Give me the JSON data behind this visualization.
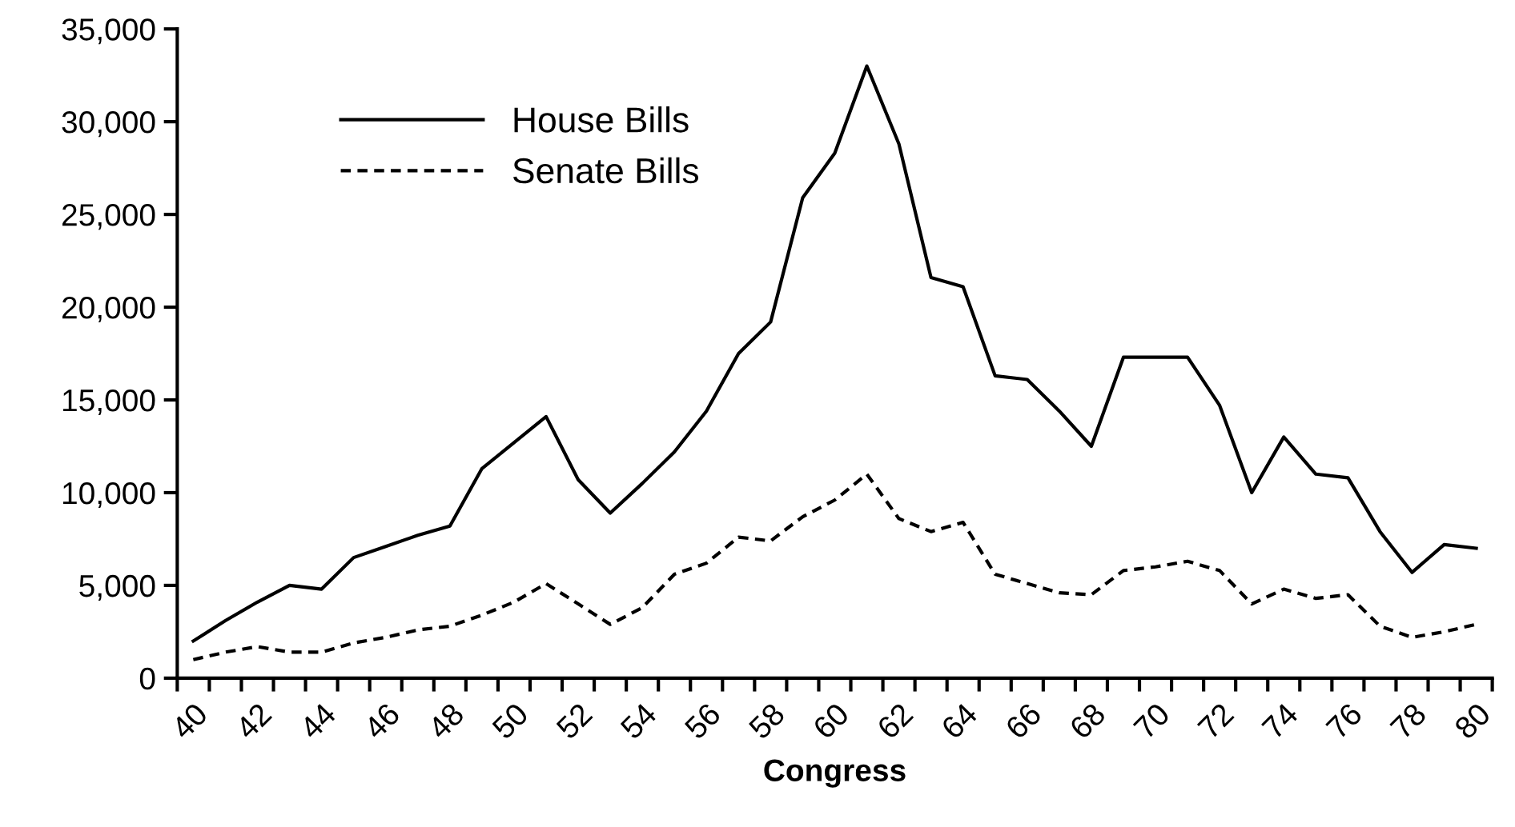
{
  "chart_data": {
    "type": "line",
    "xlabel": "Congress",
    "categories": [
      "40",
      null,
      "42",
      null,
      "44",
      null,
      "46",
      null,
      "48",
      null,
      "50",
      null,
      "52",
      null,
      "54",
      null,
      "56",
      null,
      "58",
      null,
      "60",
      null,
      "62",
      null,
      "64",
      null,
      "66",
      null,
      "68",
      null,
      "70",
      null,
      "72",
      null,
      "74",
      null,
      "76",
      null,
      "78",
      null,
      "80"
    ],
    "series": [
      {
        "name": "House Bills",
        "color": "#000000",
        "line_style": "solid",
        "values": [
          2000,
          3100,
          4100,
          5000,
          4800,
          6500,
          7100,
          7700,
          8200,
          11300,
          12700,
          14100,
          10700,
          8900,
          10500,
          12200,
          14400,
          17500,
          19200,
          25900,
          28300,
          33000,
          28800,
          21600,
          21100,
          16300,
          16100,
          14400,
          12500,
          17300,
          17300,
          17300,
          14700,
          10000,
          13000,
          11000,
          10800,
          7900,
          5700,
          7200,
          7000
        ]
      },
      {
        "name": "Senate Bills",
        "color": "#000000",
        "line_style": "dashed",
        "values": [
          1000,
          1400,
          1700,
          1400,
          1400,
          1900,
          2200,
          2600,
          2800,
          3400,
          4100,
          5100,
          4000,
          2900,
          3800,
          5600,
          6200,
          7600,
          7400,
          8700,
          9600,
          11000,
          8600,
          7900,
          8400,
          5600,
          5100,
          4600,
          4500,
          5800,
          6000,
          6300,
          5800,
          4000,
          4800,
          4300,
          4500,
          2800,
          2200,
          2500,
          2900
        ]
      }
    ],
    "ylim": [
      0,
      35000
    ],
    "yticks": [
      {
        "value": 0,
        "label": "0"
      },
      {
        "value": 5000,
        "label": "5,000"
      },
      {
        "value": 10000,
        "label": "10,000"
      },
      {
        "value": 15000,
        "label": "15,000"
      },
      {
        "value": 20000,
        "label": "20,000"
      },
      {
        "value": 25000,
        "label": "25,000"
      },
      {
        "value": 30000,
        "label": "30,000"
      },
      {
        "value": 35000,
        "label": "35,000"
      }
    ],
    "legend": "top left",
    "grid": false,
    "marker": "none"
  }
}
